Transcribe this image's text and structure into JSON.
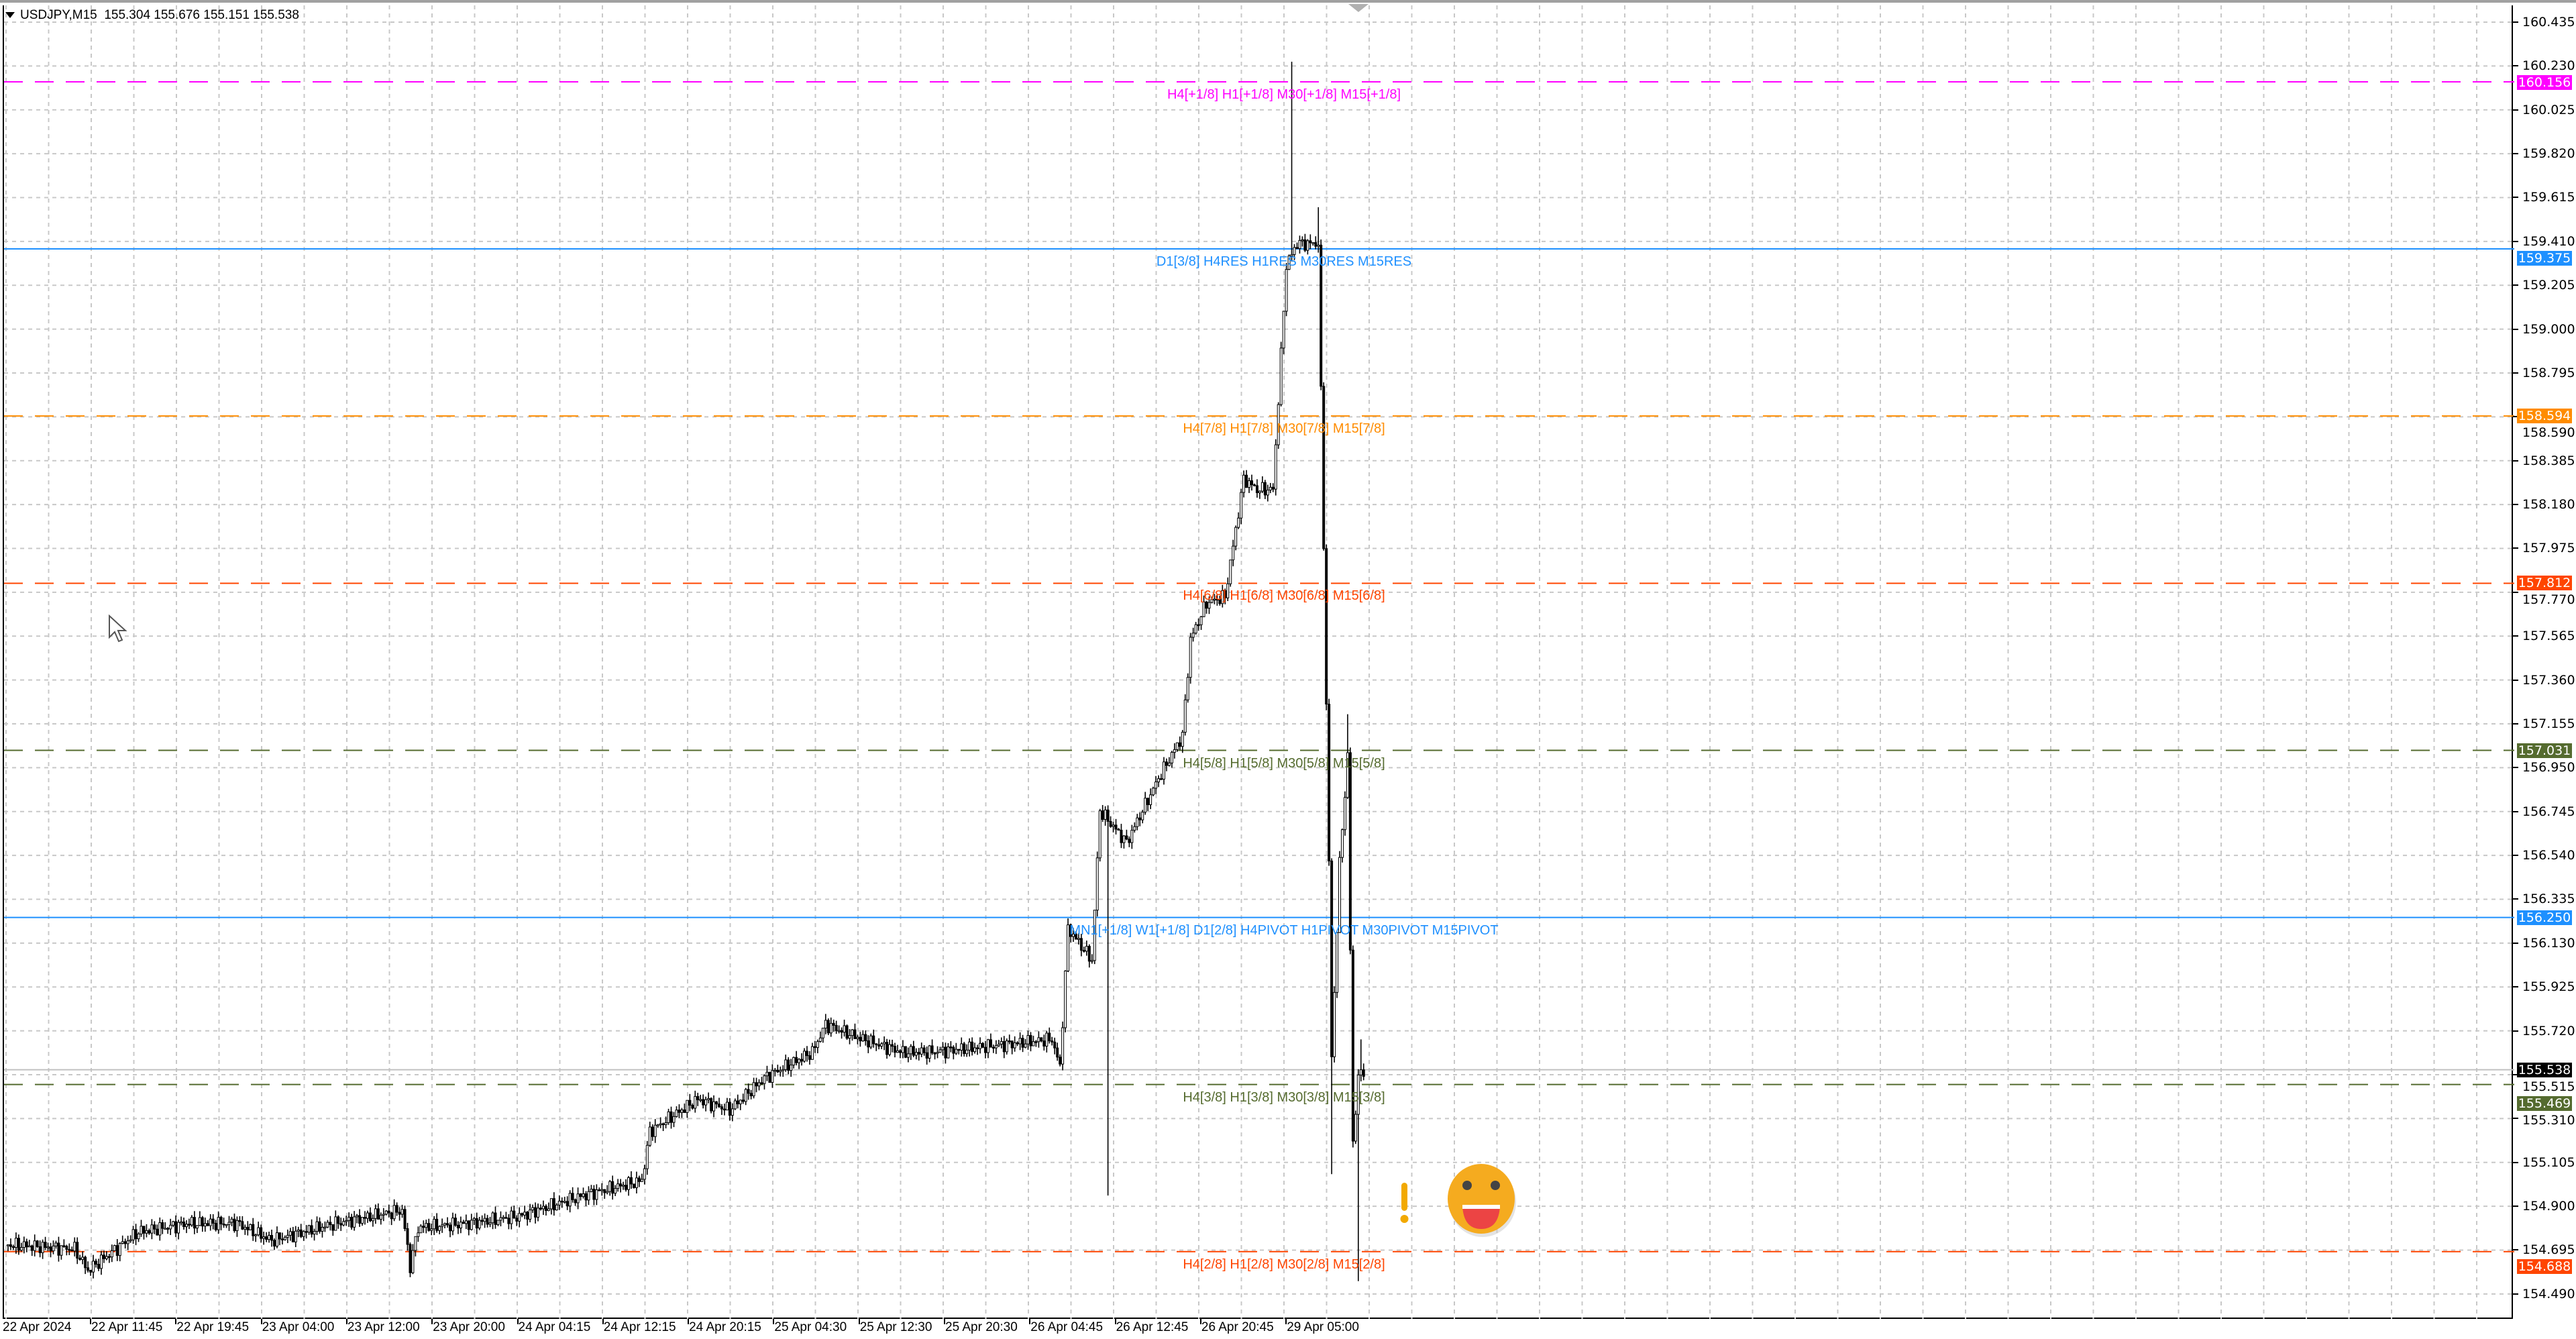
{
  "header": {
    "symbol": "USDJPY,M15",
    "open": "155.304",
    "high": "155.676",
    "low": "155.151",
    "close": "155.538"
  },
  "price_axis": [
    "160.435",
    "160.230",
    "160.025",
    "159.820",
    "159.615",
    "159.410",
    "159.205",
    "159.000",
    "158.795",
    "158.590",
    "158.385",
    "158.180",
    "157.975",
    "157.770",
    "157.565",
    "157.360",
    "157.155",
    "156.950",
    "156.745",
    "156.540",
    "156.335",
    "156.130",
    "155.925",
    "155.720",
    "155.515",
    "155.310",
    "155.105",
    "154.900",
    "154.695",
    "154.490"
  ],
  "time_axis": [
    "22 Apr 2024",
    "22 Apr 11:45",
    "22 Apr 19:45",
    "23 Apr 04:00",
    "23 Apr 12:00",
    "23 Apr 20:00",
    "24 Apr 04:15",
    "24 Apr 12:15",
    "24 Apr 20:15",
    "25 Apr 04:30",
    "25 Apr 12:30",
    "25 Apr 20:30",
    "26 Apr 04:45",
    "26 Apr 12:45",
    "26 Apr 20:45",
    "29 Apr 05:00"
  ],
  "levels": [
    {
      "price": "160.156",
      "label": "H4[+1/8] H1[+1/8] M30[+1/8] M15[+1/8]",
      "color": "#ff00ff",
      "style": "dashed"
    },
    {
      "price": "159.375",
      "label": "D1[3/8] H4RES H1RES M30RES M15RES",
      "color": "#1e90ff",
      "style": "solid"
    },
    {
      "price": "158.594",
      "label": "H4[7/8] H1[7/8] M30[7/8] M15[7/8]",
      "color": "#ff8c00",
      "style": "dashed"
    },
    {
      "price": "157.812",
      "label": "H4[6/8] H1[6/8] M30[6/8] M15[6/8]",
      "color": "#ff4500",
      "style": "dashed"
    },
    {
      "price": "157.031",
      "label": "H4[5/8] H1[5/8] M30[5/8] M15[5/8]",
      "color": "#556b2f",
      "style": "dashed"
    },
    {
      "price": "156.250",
      "label": "MN1[+1/8] W1[+1/8] D1[2/8] H4PIVOT H1PIVOT M30PIVOT M15PIVOT",
      "color": "#1e90ff",
      "style": "solid"
    },
    {
      "price": "155.469",
      "label": "H4[3/8] H1[3/8] M30[3/8] M15[3/8]",
      "color": "#556b2f",
      "style": "dashed"
    },
    {
      "price": "154.688",
      "label": "H4[2/8] H1[2/8] M30[2/8] M15[2/8]",
      "color": "#ff4500",
      "style": "dashed"
    }
  ],
  "current_price": {
    "value": "155.538",
    "color": "#000000"
  },
  "icons": {
    "alert": "exclamation-icon",
    "face": "smiley-face-icon",
    "cursor": "mouse-pointer-icon"
  },
  "chart_data": {
    "type": "candlestick",
    "symbol": "USDJPY",
    "timeframe": "M15",
    "ylim": [
      154.4,
      160.5
    ],
    "grid": true,
    "path_bar_price": [
      [
        0,
        154.72
      ],
      [
        25,
        154.7
      ],
      [
        30,
        154.6
      ],
      [
        49,
        154.78
      ],
      [
        68,
        154.82
      ],
      [
        86,
        154.82
      ],
      [
        99,
        154.74
      ],
      [
        123,
        154.82
      ],
      [
        148,
        154.88
      ],
      [
        151,
        154.62
      ],
      [
        154,
        154.8
      ],
      [
        173,
        154.82
      ],
      [
        191,
        154.85
      ],
      [
        216,
        154.95
      ],
      [
        238,
        155.02
      ],
      [
        241,
        155.25
      ],
      [
        259,
        155.4
      ],
      [
        271,
        155.35
      ],
      [
        284,
        155.5
      ],
      [
        302,
        155.62
      ],
      [
        307,
        155.75
      ],
      [
        321,
        155.68
      ],
      [
        336,
        155.62
      ],
      [
        346,
        155.62
      ],
      [
        370,
        155.65
      ],
      [
        392,
        155.68
      ],
      [
        395,
        155.55
      ],
      [
        398,
        156.2
      ],
      [
        407,
        156.05
      ],
      [
        410,
        156.75
      ],
      [
        420,
        156.6
      ],
      [
        432,
        156.9
      ],
      [
        441,
        157.1
      ],
      [
        444,
        157.55
      ],
      [
        450,
        157.72
      ],
      [
        457,
        157.75
      ],
      [
        464,
        158.3
      ],
      [
        469,
        158.25
      ],
      [
        475,
        158.25
      ],
      [
        480,
        159.3
      ],
      [
        484,
        159.4
      ],
      [
        492,
        159.4
      ],
      [
        494,
        158.0
      ],
      [
        496,
        156.5
      ],
      [
        497,
        155.6
      ],
      [
        500,
        156.5
      ],
      [
        503,
        157.0
      ],
      [
        505,
        155.2
      ],
      [
        507,
        155.5
      ],
      [
        509,
        155.54
      ]
    ],
    "spikes_bar_price": [
      [
        482,
        160.25
      ],
      [
        413,
        154.95
      ],
      [
        507,
        154.55
      ],
      [
        492,
        159.57
      ],
      [
        497,
        155.05
      ],
      [
        503,
        157.2
      ],
      [
        508,
        155.68
      ]
    ]
  }
}
